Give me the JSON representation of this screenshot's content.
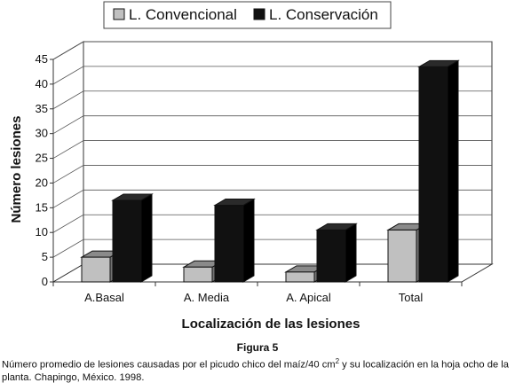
{
  "chart_data": {
    "type": "bar",
    "categories": [
      "A.Basal",
      "A. Media",
      "A. Apical",
      "Total"
    ],
    "series": [
      {
        "name": "L. Convencional",
        "values": [
          5,
          3,
          2,
          10.5
        ],
        "color": "#c0c0c0"
      },
      {
        "name": "L. Conservación",
        "values": [
          16.5,
          15.5,
          10.5,
          43.5
        ],
        "color": "#111111"
      }
    ],
    "xlabel": "Localización de las lesiones",
    "ylabel": "Número lesiones",
    "ylim": [
      0,
      45
    ],
    "yticks": [
      0,
      5,
      10,
      15,
      20,
      25,
      30,
      35,
      40,
      45
    ],
    "ytick_labels": [
      "0",
      "5",
      "10",
      "15",
      "20",
      "25",
      "30",
      "35",
      "40",
      "45"
    ],
    "grid": true,
    "style": "3d-bar",
    "legend_position": "top"
  },
  "figure": {
    "title": "Figura 5",
    "caption_pre": "Número promedio de lesiones causadas por el picudo chico del maíz/40 cm",
    "caption_sup": "2",
    "caption_post": " y su localización en la hoja ocho de la planta. Chapingo, México. 1998."
  }
}
